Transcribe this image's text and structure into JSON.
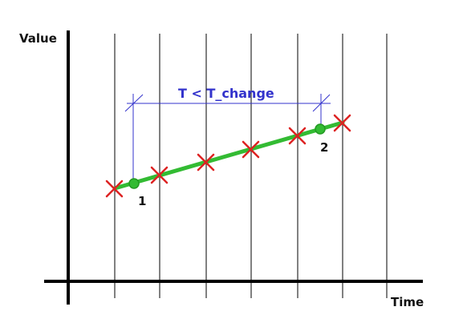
{
  "axes": {
    "y_label": "Value",
    "x_label": "Time"
  },
  "interval": {
    "label": "T < T_change",
    "color": "#3333cc"
  },
  "points": [
    {
      "id": "1",
      "label": "1"
    },
    {
      "id": "2",
      "label": "2"
    }
  ],
  "colors": {
    "axis": "#000000",
    "gridline": "#000000",
    "trend_line": "#33bb33",
    "sample_marker": "#dd2222",
    "change_point": "#33bb33"
  },
  "icons": {
    "sample_marker": "x-cross-icon",
    "change_point": "circle-point-icon"
  }
}
